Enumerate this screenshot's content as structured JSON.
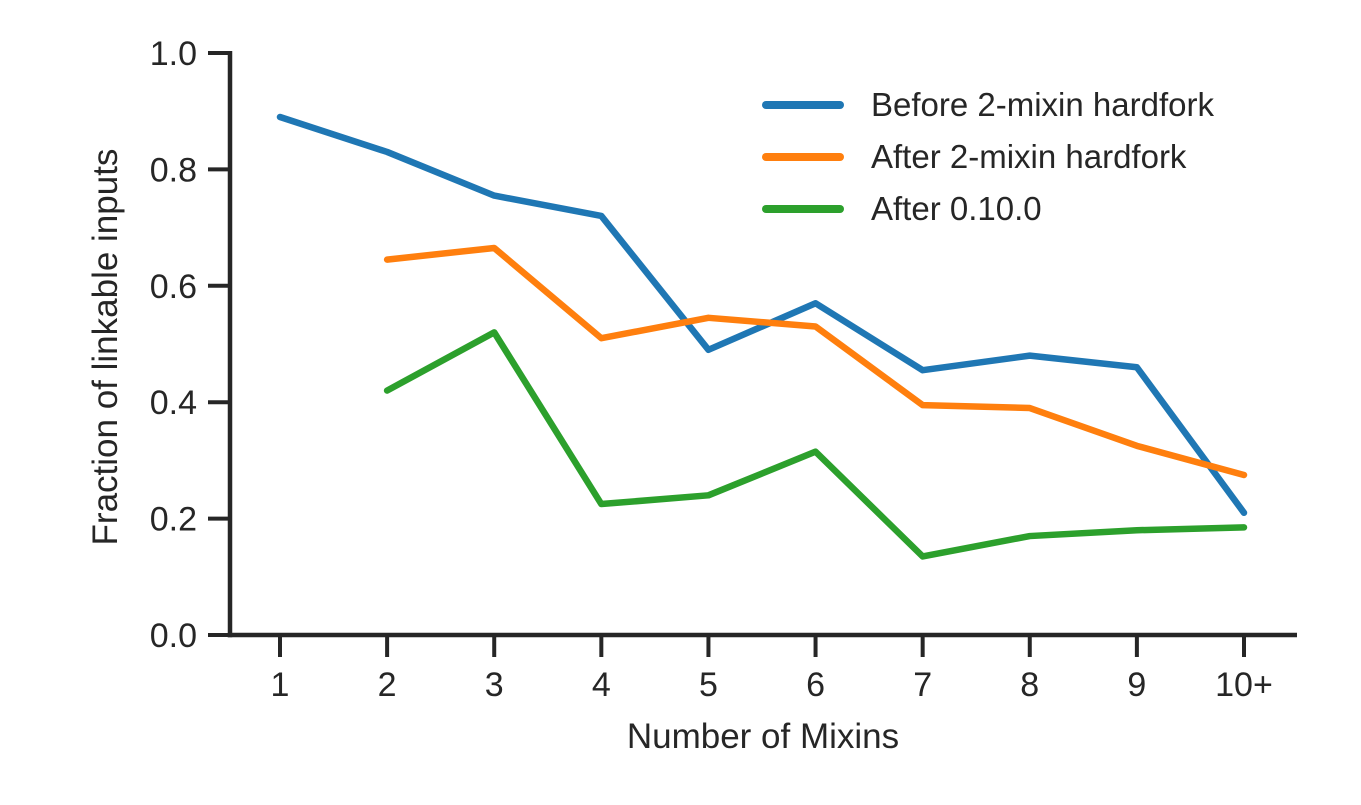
{
  "chart_data": {
    "type": "line",
    "title": "",
    "xlabel": "Number of Mixins",
    "ylabel": "Fraction of linkable inputs",
    "x_categories": [
      "1",
      "2",
      "3",
      "4",
      "5",
      "6",
      "7",
      "8",
      "9",
      "10+"
    ],
    "ytick_labels": [
      "0.0",
      "0.2",
      "0.4",
      "0.6",
      "0.8",
      "1.0"
    ],
    "ylim": [
      0.0,
      1.0
    ],
    "grid": "off",
    "legend_position": "upper right",
    "axis_color": "#262626",
    "series": [
      {
        "name": "Before 2-mixin hardfork",
        "color": "#1f77b4",
        "x": [
          1,
          2,
          3,
          4,
          5,
          6,
          7,
          8,
          9,
          10
        ],
        "values": [
          0.89,
          0.83,
          0.755,
          0.72,
          0.49,
          0.57,
          0.455,
          0.48,
          0.46,
          0.21
        ]
      },
      {
        "name": "After 2-mixin hardfork",
        "color": "#ff7f0e",
        "x": [
          2,
          3,
          4,
          5,
          6,
          7,
          8,
          9,
          10
        ],
        "values": [
          0.645,
          0.665,
          0.51,
          0.545,
          0.53,
          0.395,
          0.39,
          0.325,
          0.275
        ]
      },
      {
        "name": "After 0.10.0",
        "color": "#2ca02c",
        "x": [
          2,
          3,
          4,
          5,
          6,
          7,
          8,
          9,
          10
        ],
        "values": [
          0.42,
          0.52,
          0.225,
          0.24,
          0.315,
          0.135,
          0.17,
          0.18,
          0.185
        ]
      }
    ]
  }
}
